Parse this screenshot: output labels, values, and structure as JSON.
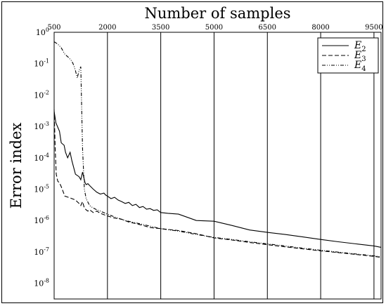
{
  "chart_data": {
    "type": "line",
    "title": "",
    "xlabel": "Number of samples",
    "ylabel": "Error index",
    "xlim": [
      500,
      9700
    ],
    "ylim_log10": [
      -8.5,
      0
    ],
    "x_scale": "linear",
    "y_scale": "log",
    "x_axis_position": "top",
    "grid": "vertical",
    "legend_position": "top-right",
    "x_ticks": [
      {
        "value": 500,
        "label": "500"
      },
      {
        "value": 2000,
        "label": "2000"
      },
      {
        "value": 3500,
        "label": "3500"
      },
      {
        "value": 5000,
        "label": "5000"
      },
      {
        "value": 6500,
        "label": "6500"
      },
      {
        "value": 8000,
        "label": "8000"
      },
      {
        "value": 9500,
        "label": "9500"
      }
    ],
    "y_ticks": [
      {
        "exp": 0,
        "base": "10",
        "power": "0"
      },
      {
        "exp": -1,
        "base": "10",
        "power": "-1"
      },
      {
        "exp": -2,
        "base": "10",
        "power": "-2"
      },
      {
        "exp": -3,
        "base": "10",
        "power": "-3"
      },
      {
        "exp": -4,
        "base": "10",
        "power": "-4"
      },
      {
        "exp": -5,
        "base": "10",
        "power": "-5"
      },
      {
        "exp": -6,
        "base": "10",
        "power": "-6"
      },
      {
        "exp": -7,
        "base": "10",
        "power": "-7"
      },
      {
        "exp": -8,
        "base": "10",
        "power": "-8"
      }
    ],
    "series": [
      {
        "name": "E2",
        "name_base": "E",
        "name_sub": "2",
        "style": "solid",
        "color": "#000000",
        "x": [
          500,
          550,
          650,
          700,
          780,
          820,
          880,
          950,
          1000,
          1100,
          1200,
          1250,
          1300,
          1370,
          1400,
          1450,
          1500,
          1600,
          1700,
          1800,
          1900,
          1950,
          2000,
          2100,
          2200,
          2300,
          2400,
          2500,
          2600,
          2700,
          2800,
          2900,
          3000,
          3100,
          3200,
          3300,
          3400,
          3500,
          3700,
          4000,
          4500,
          5000,
          5500,
          6000,
          6500,
          7000,
          7500,
          8000,
          8500,
          9000,
          9500,
          9700
        ],
        "y": [
          0.003,
          0.0013,
          0.0007,
          0.0003,
          0.00025,
          0.00015,
          0.0001,
          0.00015,
          8e-05,
          3e-05,
          2.5e-05,
          2e-05,
          3.5e-05,
          1.6e-05,
          1.4e-05,
          1.5e-05,
          1.3e-05,
          1e-05,
          8e-06,
          7e-06,
          7.5e-06,
          6.5e-06,
          6e-06,
          5e-06,
          5.5e-06,
          4.5e-06,
          4e-06,
          3.5e-06,
          3.8e-06,
          3e-06,
          3.3e-06,
          2.6e-06,
          2.8e-06,
          2.3e-06,
          2.4e-06,
          2.1e-06,
          2.2e-06,
          1.8e-06,
          1.7e-06,
          1.6e-06,
          1e-06,
          9.5e-07,
          7e-07,
          5e-07,
          4.2e-07,
          3.6e-07,
          3e-07,
          2.5e-07,
          2.1e-07,
          1.8e-07,
          1.55e-07,
          1.4e-07
        ]
      },
      {
        "name": "E3",
        "name_base": "E",
        "name_sub": "3",
        "style": "dashed",
        "color": "#000000",
        "x": [
          500,
          530,
          560,
          600,
          650,
          700,
          800,
          900,
          1000,
          1100,
          1200,
          1250,
          1300,
          1350,
          1400,
          1450,
          1500,
          1600,
          1700,
          1800,
          2000,
          2200,
          2400,
          2600,
          2800,
          3000,
          3200,
          3500,
          4000,
          4500,
          5000,
          5500,
          6000,
          6500,
          7000,
          7500,
          8000,
          8500,
          9000,
          9500,
          9700
        ],
        "y": [
          0.0035,
          0.0002,
          3e-05,
          1.8e-05,
          1.6e-05,
          1.2e-05,
          6e-06,
          5.5e-06,
          5e-06,
          4.5e-06,
          3.5e-06,
          3e-06,
          4e-06,
          2.5e-06,
          2.2e-06,
          2e-06,
          2.2e-06,
          1.8e-06,
          2e-06,
          1.7e-06,
          1.4e-06,
          1.2e-06,
          1.1e-06,
          9e-07,
          8e-07,
          7e-07,
          6e-07,
          5.5e-07,
          4.8e-07,
          3.8e-07,
          2.8e-07,
          2.4e-07,
          2e-07,
          1.7e-07,
          1.45e-07,
          1.25e-07,
          1.08e-07,
          9.5e-08,
          8.3e-08,
          7.2e-08,
          6.7e-08
        ]
      },
      {
        "name": "E4",
        "name_base": "E",
        "name_sub": "4",
        "style": "dashdot",
        "color": "#000000",
        "x": [
          500,
          600,
          700,
          800,
          900,
          1000,
          1050,
          1100,
          1150,
          1200,
          1250,
          1300,
          1350,
          1400,
          1500,
          1600,
          1700,
          1800,
          2000,
          2200,
          2500,
          3000,
          3500,
          4000,
          4500,
          5000,
          5500,
          6000,
          6500,
          7000,
          7500,
          8000,
          8500,
          9000,
          9500,
          9700
        ],
        "y": [
          0.5,
          0.42,
          0.32,
          0.2,
          0.16,
          0.12,
          0.09,
          0.06,
          0.035,
          0.06,
          0.08,
          0.0002,
          1e-05,
          5e-06,
          3e-06,
          2.5e-06,
          2.2e-06,
          2e-06,
          1.6e-06,
          1.3e-06,
          1e-06,
          7.5e-07,
          5.5e-07,
          4.6e-07,
          3.6e-07,
          2.9e-07,
          2.5e-07,
          2.1e-07,
          1.8e-07,
          1.55e-07,
          1.32e-07,
          1.13e-07,
          9.8e-08,
          8.6e-08,
          7.5e-08,
          7e-08
        ]
      }
    ]
  }
}
